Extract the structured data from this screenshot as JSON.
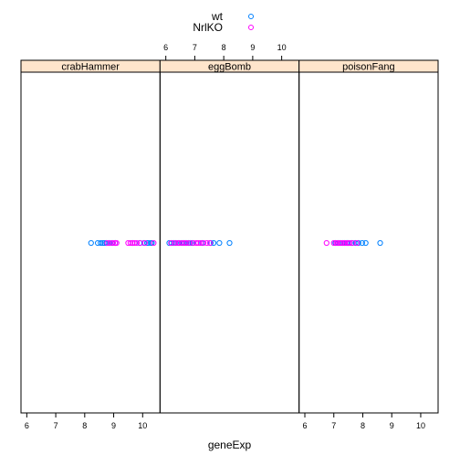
{
  "chart_data": {
    "type": "scatter",
    "title": "",
    "xlabel": "geneExp",
    "ylabel": "",
    "xlim": [
      5.8,
      10.6
    ],
    "x_ticks": [
      6,
      7,
      8,
      9,
      10
    ],
    "x_tick_labels": [
      "6",
      "7",
      "8",
      "9",
      "10"
    ],
    "grid": false,
    "legend_position": "top",
    "colors": {
      "wt": "#0080ff",
      "NrlKO": "#ff00ff",
      "strip": "#ffe5cc"
    },
    "panels": [
      {
        "name": "crabHammer",
        "series": [
          {
            "name": "wt",
            "values": [
              8.22,
              8.45,
              8.55,
              8.62,
              8.68,
              8.75,
              8.85,
              8.95,
              9.05,
              9.65,
              9.9,
              10.05,
              10.15,
              10.2,
              10.28,
              10.32
            ]
          },
          {
            "name": "NrlKO",
            "values": [
              8.78,
              8.88,
              8.98,
              9.05,
              9.1,
              9.5,
              9.58,
              9.65,
              9.72,
              9.8,
              9.92,
              10.08,
              10.38
            ]
          }
        ]
      },
      {
        "name": "eggBomb",
        "series": [
          {
            "name": "wt",
            "values": [
              6.12,
              6.2,
              6.28,
              6.35,
              6.45,
              6.55,
              6.62,
              6.7,
              6.78,
              6.85,
              6.92,
              7.25,
              7.55,
              7.65,
              7.85,
              8.2
            ]
          },
          {
            "name": "NrlKO",
            "values": [
              6.18,
              6.3,
              6.4,
              6.48,
              6.58,
              6.65,
              6.72,
              6.82,
              6.95,
              7.05,
              7.12,
              7.2,
              7.3,
              7.42,
              7.52
            ]
          }
        ]
      },
      {
        "name": "poisonFang",
        "series": [
          {
            "name": "wt",
            "values": [
              7.05,
              7.15,
              7.22,
              7.3,
              7.38,
              7.45,
              7.5,
              7.62,
              7.75,
              7.85,
              7.98,
              8.1,
              8.6
            ]
          },
          {
            "name": "NrlKO",
            "values": [
              6.75,
              7.0,
              7.08,
              7.12,
              7.2,
              7.28,
              7.35,
              7.4,
              7.48,
              7.55,
              7.65,
              7.8
            ]
          }
        ]
      }
    ]
  }
}
